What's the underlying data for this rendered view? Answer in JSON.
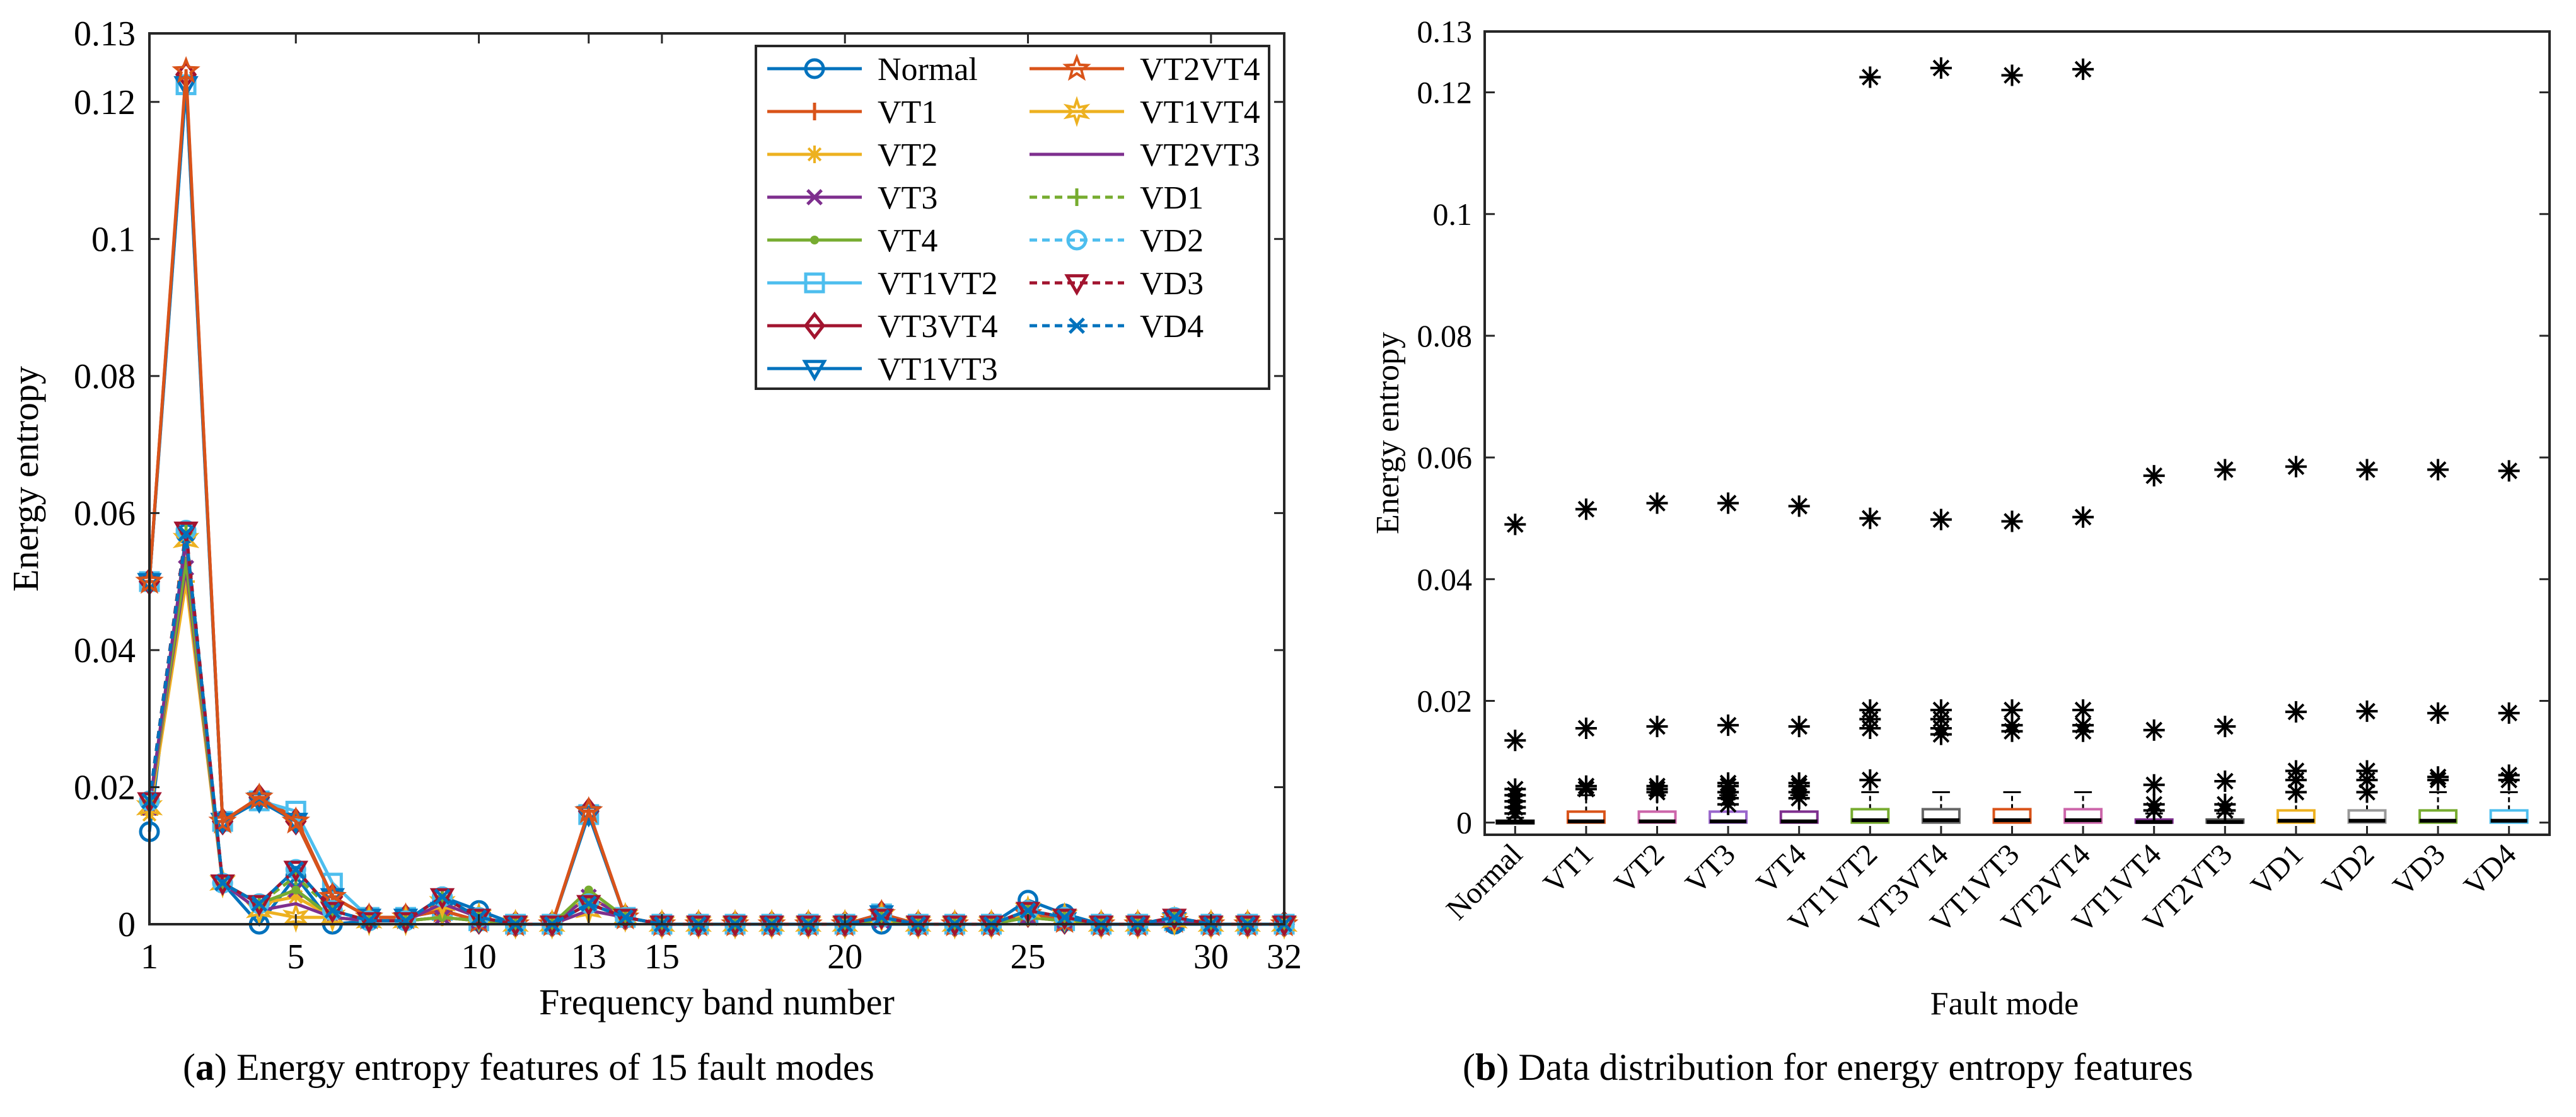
{
  "colors": {
    "Normal": "#0072BD",
    "VT1": "#D95319",
    "VT2": "#EDB120",
    "VT3": "#7E2F8E",
    "VT4": "#77AC30",
    "VT1VT2": "#4DBEEE",
    "VT3VT4": "#A2142F",
    "VT1VT3": "#0072BD",
    "VT2VT4": "#D95319",
    "VT1VT4": "#EDB120",
    "VT2VT3": "#7E2F8E",
    "VD1": "#77AC30",
    "VD2": "#4DBEEE",
    "VD3": "#A2142F",
    "VD4": "#0072BD"
  },
  "chart_data": [
    {
      "type": "line",
      "caption_label": "a",
      "caption_text": "Energy entropy features of 15 fault modes",
      "xlabel": "Frequency band number",
      "ylabel": "Energy entropy",
      "xlim": [
        1,
        32
      ],
      "ylim": [
        0,
        0.13
      ],
      "x_ticks": [
        1,
        5,
        10,
        13,
        15,
        20,
        25,
        30,
        32
      ],
      "y_ticks": [
        0,
        0.02,
        0.04,
        0.06,
        0.08,
        0.1,
        0.12,
        0.13
      ],
      "y_tick_labels": [
        "0",
        "0.02",
        "0.04",
        "0.06",
        "0.08",
        "0.1",
        "0.12",
        "0.13"
      ],
      "legend_position": "top-right",
      "legend_columns": [
        [
          "Normal",
          "VT1",
          "VT2",
          "VT3",
          "VT4",
          "VT1VT2",
          "VT3VT4",
          "VT1VT3"
        ],
        [
          "VT2VT4",
          "VT1VT4",
          "VT2VT3",
          "VD1",
          "VD2",
          "VD3",
          "VD4"
        ]
      ],
      "x": [
        1,
        2,
        3,
        4,
        5,
        6,
        7,
        8,
        9,
        10,
        11,
        12,
        13,
        14,
        15,
        16,
        17,
        18,
        19,
        20,
        21,
        22,
        23,
        24,
        25,
        26,
        27,
        28,
        29,
        30,
        31,
        32
      ],
      "series": [
        {
          "name": "Normal",
          "marker": "circle",
          "dash": false,
          "values": [
            0.0135,
            0.057,
            0.006,
            0.0,
            0.007,
            0.0,
            0.0005,
            0.0005,
            0.004,
            0.002,
            0.0,
            0.0,
            0.003,
            0.001,
            0.0,
            0.0,
            0.0,
            0.0,
            0.0,
            0.0,
            0.0,
            0.0,
            0.0,
            0.0,
            0.0035,
            0.0015,
            0.0,
            0.0,
            0.0,
            0.0,
            0.0,
            0.0
          ]
        },
        {
          "name": "VT1",
          "marker": "plus",
          "dash": false,
          "values": [
            0.05,
            0.1235,
            0.015,
            0.0185,
            0.0155,
            0.004,
            0.001,
            0.001,
            0.002,
            0.0005,
            0.0,
            0.0,
            0.0165,
            0.001,
            0.0,
            0.0,
            0.0,
            0.0,
            0.0,
            0.0,
            0.0015,
            0.0,
            0.0,
            0.0,
            0.0015,
            0.0005,
            0.0,
            0.0,
            0.0005,
            0.0,
            0.0,
            0.0
          ]
        },
        {
          "name": "VT2",
          "marker": "asterisk",
          "dash": false,
          "values": [
            0.016,
            0.05,
            0.006,
            0.003,
            0.004,
            0.001,
            0.0005,
            0.0005,
            0.001,
            0.0005,
            0.0,
            0.0,
            0.004,
            0.001,
            0.0,
            0.0,
            0.0,
            0.0,
            0.0,
            0.0,
            0.0005,
            0.0,
            0.0,
            0.0,
            0.001,
            0.0005,
            0.0,
            0.0,
            0.0005,
            0.0,
            0.0,
            0.0
          ]
        },
        {
          "name": "VT3",
          "marker": "x",
          "dash": false,
          "values": [
            0.017,
            0.052,
            0.006,
            0.003,
            0.005,
            0.001,
            0.0005,
            0.0005,
            0.001,
            0.0005,
            0.0,
            0.0,
            0.004,
            0.001,
            0.0,
            0.0,
            0.0,
            0.0,
            0.0,
            0.0,
            0.0005,
            0.0,
            0.0,
            0.0,
            0.001,
            0.0005,
            0.0,
            0.0,
            0.0005,
            0.0,
            0.0,
            0.0
          ]
        },
        {
          "name": "VT4",
          "marker": "dot",
          "dash": false,
          "values": [
            0.017,
            0.053,
            0.006,
            0.003,
            0.005,
            0.001,
            0.0005,
            0.0005,
            0.001,
            0.0005,
            0.0,
            0.0,
            0.005,
            0.001,
            0.0,
            0.0,
            0.0,
            0.0,
            0.0,
            0.0,
            0.0005,
            0.0,
            0.0,
            0.0,
            0.001,
            0.0005,
            0.0,
            0.0,
            0.0005,
            0.0,
            0.0,
            0.0
          ]
        },
        {
          "name": "VT1VT2",
          "marker": "square",
          "dash": false,
          "values": [
            0.05,
            0.1225,
            0.015,
            0.018,
            0.0165,
            0.006,
            0.001,
            0.001,
            0.002,
            0.0005,
            0.0,
            0.0,
            0.016,
            0.001,
            0.0,
            0.0,
            0.0,
            0.0,
            0.0,
            0.0,
            0.0015,
            0.0,
            0.0,
            0.0,
            0.0015,
            0.0005,
            0.0,
            0.0,
            0.0005,
            0.0,
            0.0,
            0.0
          ]
        },
        {
          "name": "VT3VT4",
          "marker": "diamond",
          "dash": false,
          "values": [
            0.05,
            0.124,
            0.015,
            0.0185,
            0.015,
            0.004,
            0.001,
            0.001,
            0.002,
            0.0005,
            0.0,
            0.0,
            0.0165,
            0.001,
            0.0,
            0.0,
            0.0,
            0.0,
            0.0,
            0.0,
            0.0015,
            0.0,
            0.0,
            0.0,
            0.0015,
            0.0005,
            0.0,
            0.0,
            0.0005,
            0.0,
            0.0,
            0.0
          ]
        },
        {
          "name": "VT1VT3",
          "marker": "triangle-down",
          "dash": false,
          "values": [
            0.05,
            0.1225,
            0.015,
            0.018,
            0.015,
            0.004,
            0.001,
            0.001,
            0.002,
            0.0005,
            0.0,
            0.0,
            0.016,
            0.001,
            0.0,
            0.0,
            0.0,
            0.0,
            0.0,
            0.0,
            0.0015,
            0.0,
            0.0,
            0.0,
            0.0015,
            0.0005,
            0.0,
            0.0,
            0.0005,
            0.0,
            0.0,
            0.0
          ]
        },
        {
          "name": "VT2VT4",
          "marker": "pentagram",
          "dash": false,
          "values": [
            0.05,
            0.1245,
            0.015,
            0.0185,
            0.015,
            0.004,
            0.001,
            0.001,
            0.002,
            0.0005,
            0.0,
            0.0,
            0.0165,
            0.001,
            0.0,
            0.0,
            0.0,
            0.0,
            0.0,
            0.0,
            0.0015,
            0.0,
            0.0,
            0.0,
            0.0015,
            0.0005,
            0.0,
            0.0,
            0.0005,
            0.0,
            0.0,
            0.0
          ]
        },
        {
          "name": "VT1VT4",
          "marker": "hexagram",
          "dash": false,
          "values": [
            0.017,
            0.056,
            0.006,
            0.002,
            0.001,
            0.001,
            0.0005,
            0.0005,
            0.003,
            0.001,
            0.0,
            0.0,
            0.002,
            0.001,
            0.0,
            0.0,
            0.0,
            0.0,
            0.0,
            0.0,
            0.001,
            0.0,
            0.0,
            0.0,
            0.002,
            0.001,
            0.0,
            0.0,
            0.0005,
            0.0,
            0.0,
            0.0
          ]
        },
        {
          "name": "VT2VT3",
          "marker": "none",
          "dash": false,
          "values": [
            0.017,
            0.056,
            0.006,
            0.002,
            0.003,
            0.001,
            0.0005,
            0.0005,
            0.003,
            0.001,
            0.0,
            0.0,
            0.002,
            0.001,
            0.0,
            0.0,
            0.0,
            0.0,
            0.0,
            0.0,
            0.001,
            0.0,
            0.0,
            0.0,
            0.002,
            0.001,
            0.0,
            0.0,
            0.0005,
            0.0,
            0.0,
            0.0
          ]
        },
        {
          "name": "VD1",
          "marker": "plus",
          "dash": true,
          "values": [
            0.018,
            0.057,
            0.006,
            0.003,
            0.007,
            0.002,
            0.0005,
            0.0005,
            0.004,
            0.001,
            0.0,
            0.0,
            0.003,
            0.001,
            0.0,
            0.0,
            0.0,
            0.0,
            0.0,
            0.0,
            0.001,
            0.0,
            0.0,
            0.0,
            0.002,
            0.001,
            0.0,
            0.0,
            0.001,
            0.0,
            0.0,
            0.0
          ]
        },
        {
          "name": "VD2",
          "marker": "circle",
          "dash": true,
          "values": [
            0.018,
            0.0575,
            0.006,
            0.003,
            0.008,
            0.002,
            0.0005,
            0.0005,
            0.004,
            0.001,
            0.0,
            0.0,
            0.003,
            0.001,
            0.0,
            0.0,
            0.0,
            0.0,
            0.0,
            0.0,
            0.001,
            0.0,
            0.0,
            0.0,
            0.002,
            0.001,
            0.0,
            0.0,
            0.001,
            0.0,
            0.0,
            0.0
          ]
        },
        {
          "name": "VD3",
          "marker": "triangle-down",
          "dash": true,
          "values": [
            0.018,
            0.0575,
            0.006,
            0.003,
            0.008,
            0.002,
            0.0005,
            0.0005,
            0.004,
            0.001,
            0.0,
            0.0,
            0.003,
            0.001,
            0.0,
            0.0,
            0.0,
            0.0,
            0.0,
            0.0,
            0.001,
            0.0,
            0.0,
            0.0,
            0.002,
            0.001,
            0.0,
            0.0,
            0.001,
            0.0,
            0.0,
            0.0
          ]
        },
        {
          "name": "VD4",
          "marker": "x",
          "dash": true,
          "values": [
            0.018,
            0.057,
            0.006,
            0.003,
            0.008,
            0.002,
            0.0005,
            0.0005,
            0.004,
            0.001,
            0.0,
            0.0,
            0.003,
            0.001,
            0.0,
            0.0,
            0.0,
            0.0,
            0.0,
            0.0,
            0.001,
            0.0,
            0.0,
            0.0,
            0.002,
            0.001,
            0.0,
            0.0,
            0.001,
            0.0,
            0.0,
            0.0
          ]
        }
      ]
    },
    {
      "type": "box",
      "caption_label": "b",
      "caption_text": "Data distribution for energy entropy features",
      "xlabel": "Fault mode",
      "ylabel": "Energy entropy",
      "ylim": [
        -0.002,
        0.13
      ],
      "y_ticks": [
        0,
        0.02,
        0.04,
        0.06,
        0.08,
        0.1,
        0.12,
        0.13
      ],
      "y_tick_labels": [
        "0",
        "0.02",
        "0.04",
        "0.06",
        "0.08",
        "0.1",
        "0.12",
        "0.13"
      ],
      "categories": [
        "Normal",
        "VT1",
        "VT2",
        "VT3",
        "VT4",
        "VT1VT2",
        "VT3VT4",
        "VT1VT3",
        "VT2VT4",
        "VT1VT4",
        "VT2VT3",
        "VD1",
        "VD2",
        "VD3",
        "VD4"
      ],
      "boxes": [
        {
          "q1": 0.0,
          "median": 0.0001,
          "q3": 0.0003,
          "whisker_high": 0.0008,
          "outliers": [
            0.049,
            0.0135,
            0.0055,
            0.0045,
            0.0035,
            0.0025,
            0.0015
          ]
        },
        {
          "q1": 0.0,
          "median": 0.0002,
          "q3": 0.0018,
          "whisker_high": 0.0045,
          "outliers": [
            0.0515,
            0.0155,
            0.006,
            0.0055
          ]
        },
        {
          "q1": 0.0,
          "median": 0.0002,
          "q3": 0.0018,
          "whisker_high": 0.0045,
          "outliers": [
            0.0525,
            0.0158,
            0.006,
            0.0055,
            0.005
          ]
        },
        {
          "q1": 0.0,
          "median": 0.0002,
          "q3": 0.0018,
          "whisker_high": 0.0045,
          "outliers": [
            0.0525,
            0.016,
            0.0065,
            0.006,
            0.005,
            0.004,
            0.003
          ]
        },
        {
          "q1": 0.0,
          "median": 0.0002,
          "q3": 0.0018,
          "whisker_high": 0.0045,
          "outliers": [
            0.052,
            0.0158,
            0.0065,
            0.006,
            0.005,
            0.004
          ]
        },
        {
          "q1": 0.0,
          "median": 0.0004,
          "q3": 0.0022,
          "whisker_high": 0.005,
          "outliers": [
            0.1225,
            0.05,
            0.0185,
            0.017,
            0.0155,
            0.007
          ]
        },
        {
          "q1": 0.0,
          "median": 0.0004,
          "q3": 0.0022,
          "whisker_high": 0.005,
          "outliers": [
            0.124,
            0.0498,
            0.0185,
            0.017,
            0.0155,
            0.0145
          ]
        },
        {
          "q1": 0.0,
          "median": 0.0004,
          "q3": 0.0022,
          "whisker_high": 0.005,
          "outliers": [
            0.1228,
            0.0495,
            0.0185,
            0.016,
            0.015
          ]
        },
        {
          "q1": 0.0,
          "median": 0.0004,
          "q3": 0.0022,
          "whisker_high": 0.005,
          "outliers": [
            0.1238,
            0.0502,
            0.0185,
            0.016,
            0.015
          ]
        },
        {
          "q1": 0.0,
          "median": 0.0001,
          "q3": 0.0005,
          "whisker_high": 0.0015,
          "outliers": [
            0.057,
            0.0152,
            0.0062,
            0.003,
            0.002
          ]
        },
        {
          "q1": 0.0,
          "median": 0.0001,
          "q3": 0.0005,
          "whisker_high": 0.0015,
          "outliers": [
            0.058,
            0.0158,
            0.0068,
            0.003,
            0.002
          ]
        },
        {
          "q1": 0.0,
          "median": 0.0003,
          "q3": 0.002,
          "whisker_high": 0.005,
          "outliers": [
            0.0585,
            0.0182,
            0.0085,
            0.007,
            0.005
          ]
        },
        {
          "q1": 0.0,
          "median": 0.0003,
          "q3": 0.002,
          "whisker_high": 0.005,
          "outliers": [
            0.058,
            0.0183,
            0.0085,
            0.007,
            0.005
          ]
        },
        {
          "q1": 0.0,
          "median": 0.0003,
          "q3": 0.002,
          "whisker_high": 0.005,
          "outliers": [
            0.058,
            0.018,
            0.0075,
            0.007
          ]
        },
        {
          "q1": 0.0,
          "median": 0.0003,
          "q3": 0.002,
          "whisker_high": 0.005,
          "outliers": [
            0.0578,
            0.018,
            0.0078,
            0.007
          ]
        }
      ],
      "box_colors": [
        "#000000",
        "#D95319",
        "#CC66AA",
        "#9966CC",
        "#7E2F8E",
        "#77AC30",
        "#666666",
        "#D95319",
        "#CC66AA",
        "#7E2F8E",
        "#555555",
        "#EDB120",
        "#999999",
        "#77AC30",
        "#4DBEEE"
      ]
    }
  ]
}
